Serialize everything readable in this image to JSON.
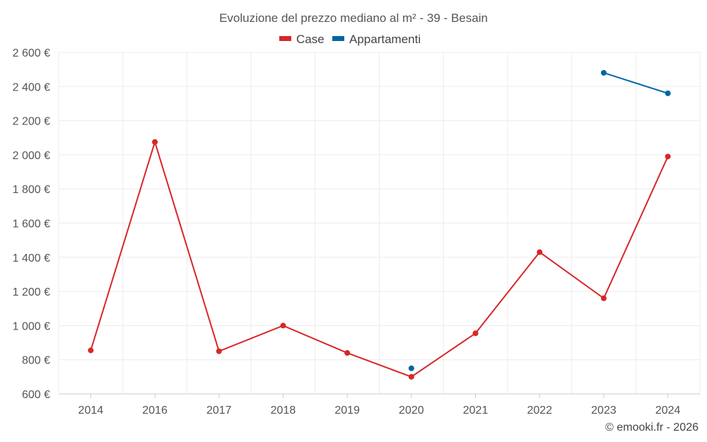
{
  "chart_data": {
    "type": "line",
    "title": "Evoluzione del prezzo mediano al m² - 39 - Besain",
    "categories": [
      "2014",
      "2016",
      "2017",
      "2018",
      "2019",
      "2020",
      "2021",
      "2022",
      "2023",
      "2024"
    ],
    "ylim": [
      600,
      2600
    ],
    "yticks": [
      600,
      800,
      1000,
      1200,
      1400,
      1600,
      1800,
      2000,
      2200,
      2400,
      2600
    ],
    "ytick_labels": [
      "600 €",
      "800 €",
      "1 000 €",
      "1 200 €",
      "1 400 €",
      "1 600 €",
      "1 800 €",
      "2 000 €",
      "2 200 €",
      "2 400 €",
      "2 600 €"
    ],
    "grid": true,
    "legend": "top-center",
    "series": [
      {
        "name": "Case",
        "color": "#d62728",
        "values": [
          855,
          2075,
          850,
          1000,
          840,
          700,
          955,
          1430,
          1160,
          1990
        ]
      },
      {
        "name": "Appartamenti",
        "color": "#0066a1",
        "values": [
          null,
          null,
          null,
          null,
          null,
          750,
          null,
          null,
          2480,
          2360
        ]
      }
    ]
  },
  "credit": "© emooki.fr - 2026"
}
